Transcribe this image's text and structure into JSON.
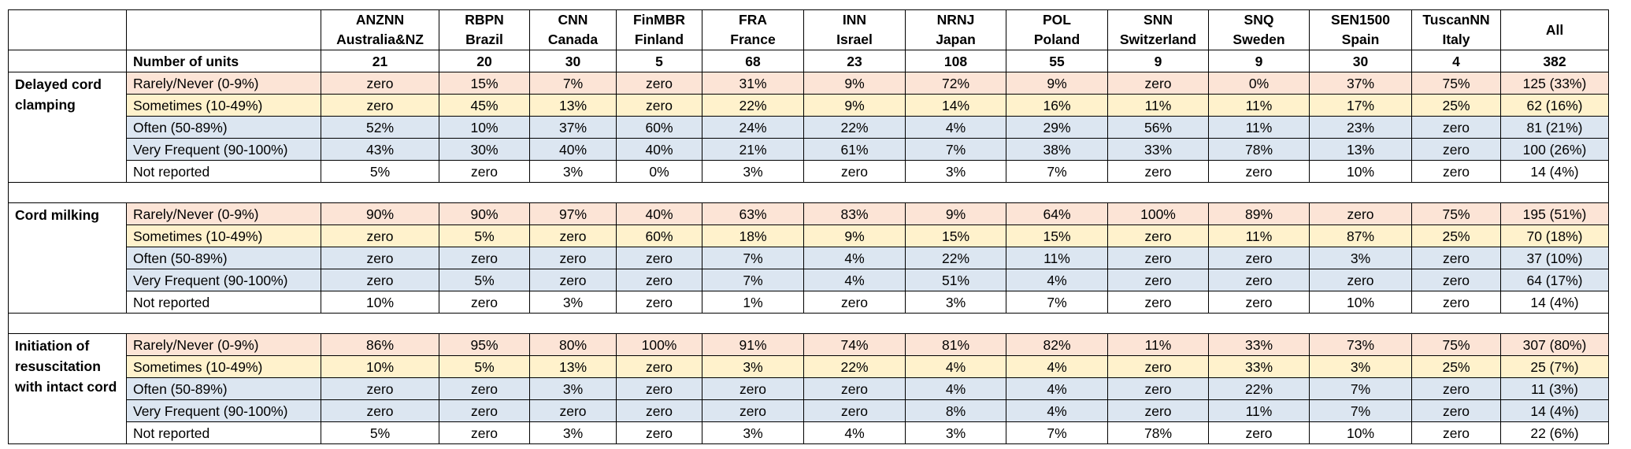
{
  "header": {
    "columns": [
      {
        "line1": "ANZNN",
        "line2": "Australia&NZ"
      },
      {
        "line1": "RBPN",
        "line2": "Brazil"
      },
      {
        "line1": "CNN",
        "line2": "Canada"
      },
      {
        "line1": "FinMBR",
        "line2": "Finland"
      },
      {
        "line1": "FRA",
        "line2": "France"
      },
      {
        "line1": "INN",
        "line2": "Israel"
      },
      {
        "line1": "NRNJ",
        "line2": "Japan"
      },
      {
        "line1": "POL",
        "line2": "Poland"
      },
      {
        "line1": "SNN",
        "line2": "Switzerland"
      },
      {
        "line1": "SNQ",
        "line2": "Sweden"
      },
      {
        "line1": "SEN1500",
        "line2": "Spain"
      },
      {
        "line1": "TuscanNN",
        "line2": "Italy"
      },
      {
        "line1": "All",
        "line2": ""
      }
    ],
    "units_label": "Number of units",
    "units": [
      "21",
      "20",
      "30",
      "5",
      "68",
      "23",
      "108",
      "55",
      "9",
      "9",
      "30",
      "4",
      "382"
    ]
  },
  "sections": [
    {
      "title": "Delayed cord clamping",
      "rows": [
        {
          "label": "Rarely/Never (0-9%)",
          "values": [
            "zero",
            "15%",
            "7%",
            "zero",
            "31%",
            "9%",
            "72%",
            "9%",
            "zero",
            "0%",
            "37%",
            "75%",
            "125 (33%)"
          ]
        },
        {
          "label": "Sometimes (10-49%)",
          "values": [
            "zero",
            "45%",
            "13%",
            "zero",
            "22%",
            "9%",
            "14%",
            "16%",
            "11%",
            "11%",
            "17%",
            "25%",
            "62 (16%)"
          ]
        },
        {
          "label": "Often (50-89%)",
          "values": [
            "52%",
            "10%",
            "37%",
            "60%",
            "24%",
            "22%",
            "4%",
            "29%",
            "56%",
            "11%",
            "23%",
            "zero",
            "81 (21%)"
          ]
        },
        {
          "label": "Very Frequent (90-100%)",
          "values": [
            "43%",
            "30%",
            "40%",
            "40%",
            "21%",
            "61%",
            "7%",
            "38%",
            "33%",
            "78%",
            "13%",
            "zero",
            "100 (26%)"
          ]
        },
        {
          "label": "Not reported",
          "values": [
            "5%",
            "zero",
            "3%",
            "0%",
            "3%",
            "zero",
            "3%",
            "7%",
            "zero",
            "zero",
            "10%",
            "zero",
            "14 (4%)"
          ]
        }
      ]
    },
    {
      "title": "Cord milking",
      "rows": [
        {
          "label": "Rarely/Never (0-9%)",
          "values": [
            "90%",
            "90%",
            "97%",
            "40%",
            "63%",
            "83%",
            "9%",
            "64%",
            "100%",
            "89%",
            "zero",
            "75%",
            "195 (51%)"
          ]
        },
        {
          "label": "Sometimes (10-49%)",
          "values": [
            "zero",
            "5%",
            "zero",
            "60%",
            "18%",
            "9%",
            "15%",
            "15%",
            "zero",
            "11%",
            "87%",
            "25%",
            "70 (18%)"
          ]
        },
        {
          "label": "Often (50-89%)",
          "values": [
            "zero",
            "zero",
            "zero",
            "zero",
            "7%",
            "4%",
            "22%",
            "11%",
            "zero",
            "zero",
            "3%",
            "zero",
            "37 (10%)"
          ]
        },
        {
          "label": "Very Frequent (90-100%)",
          "values": [
            "zero",
            "5%",
            "zero",
            "zero",
            "7%",
            "4%",
            "51%",
            "4%",
            "zero",
            "zero",
            "zero",
            "zero",
            "64 (17%)"
          ]
        },
        {
          "label": "Not reported",
          "values": [
            "10%",
            "zero",
            "3%",
            "zero",
            "1%",
            "zero",
            "3%",
            "7%",
            "zero",
            "zero",
            "10%",
            "zero",
            "14 (4%)"
          ]
        }
      ]
    },
    {
      "title": "Initiation of resuscitation with intact cord",
      "rows": [
        {
          "label": "Rarely/Never (0-9%)",
          "values": [
            "86%",
            "95%",
            "80%",
            "100%",
            "91%",
            "74%",
            "81%",
            "82%",
            "11%",
            "33%",
            "73%",
            "75%",
            "307 (80%)"
          ]
        },
        {
          "label": "Sometimes (10-49%)",
          "values": [
            "10%",
            "5%",
            "13%",
            "zero",
            "3%",
            "22%",
            "4%",
            "4%",
            "zero",
            "33%",
            "3%",
            "25%",
            "25 (7%)"
          ]
        },
        {
          "label": "Often (50-89%)",
          "values": [
            "zero",
            "zero",
            "3%",
            "zero",
            "zero",
            "zero",
            "4%",
            "4%",
            "zero",
            "22%",
            "7%",
            "zero",
            "11 (3%)"
          ]
        },
        {
          "label": "Very Frequent (90-100%)",
          "values": [
            "zero",
            "zero",
            "zero",
            "zero",
            "zero",
            "zero",
            "8%",
            "4%",
            "zero",
            "11%",
            "7%",
            "zero",
            "14 (4%)"
          ]
        },
        {
          "label": "Not reported",
          "values": [
            "5%",
            "zero",
            "3%",
            "zero",
            "3%",
            "4%",
            "3%",
            "7%",
            "78%",
            "zero",
            "10%",
            "zero",
            "22 (6%)"
          ]
        }
      ]
    }
  ],
  "colors": {
    "rarely": "#fce4d6",
    "sometimes": "#fff2cc",
    "often": "#dce6f1",
    "very_frequent": "#dce6f1",
    "not_reported": "#ffffff"
  }
}
